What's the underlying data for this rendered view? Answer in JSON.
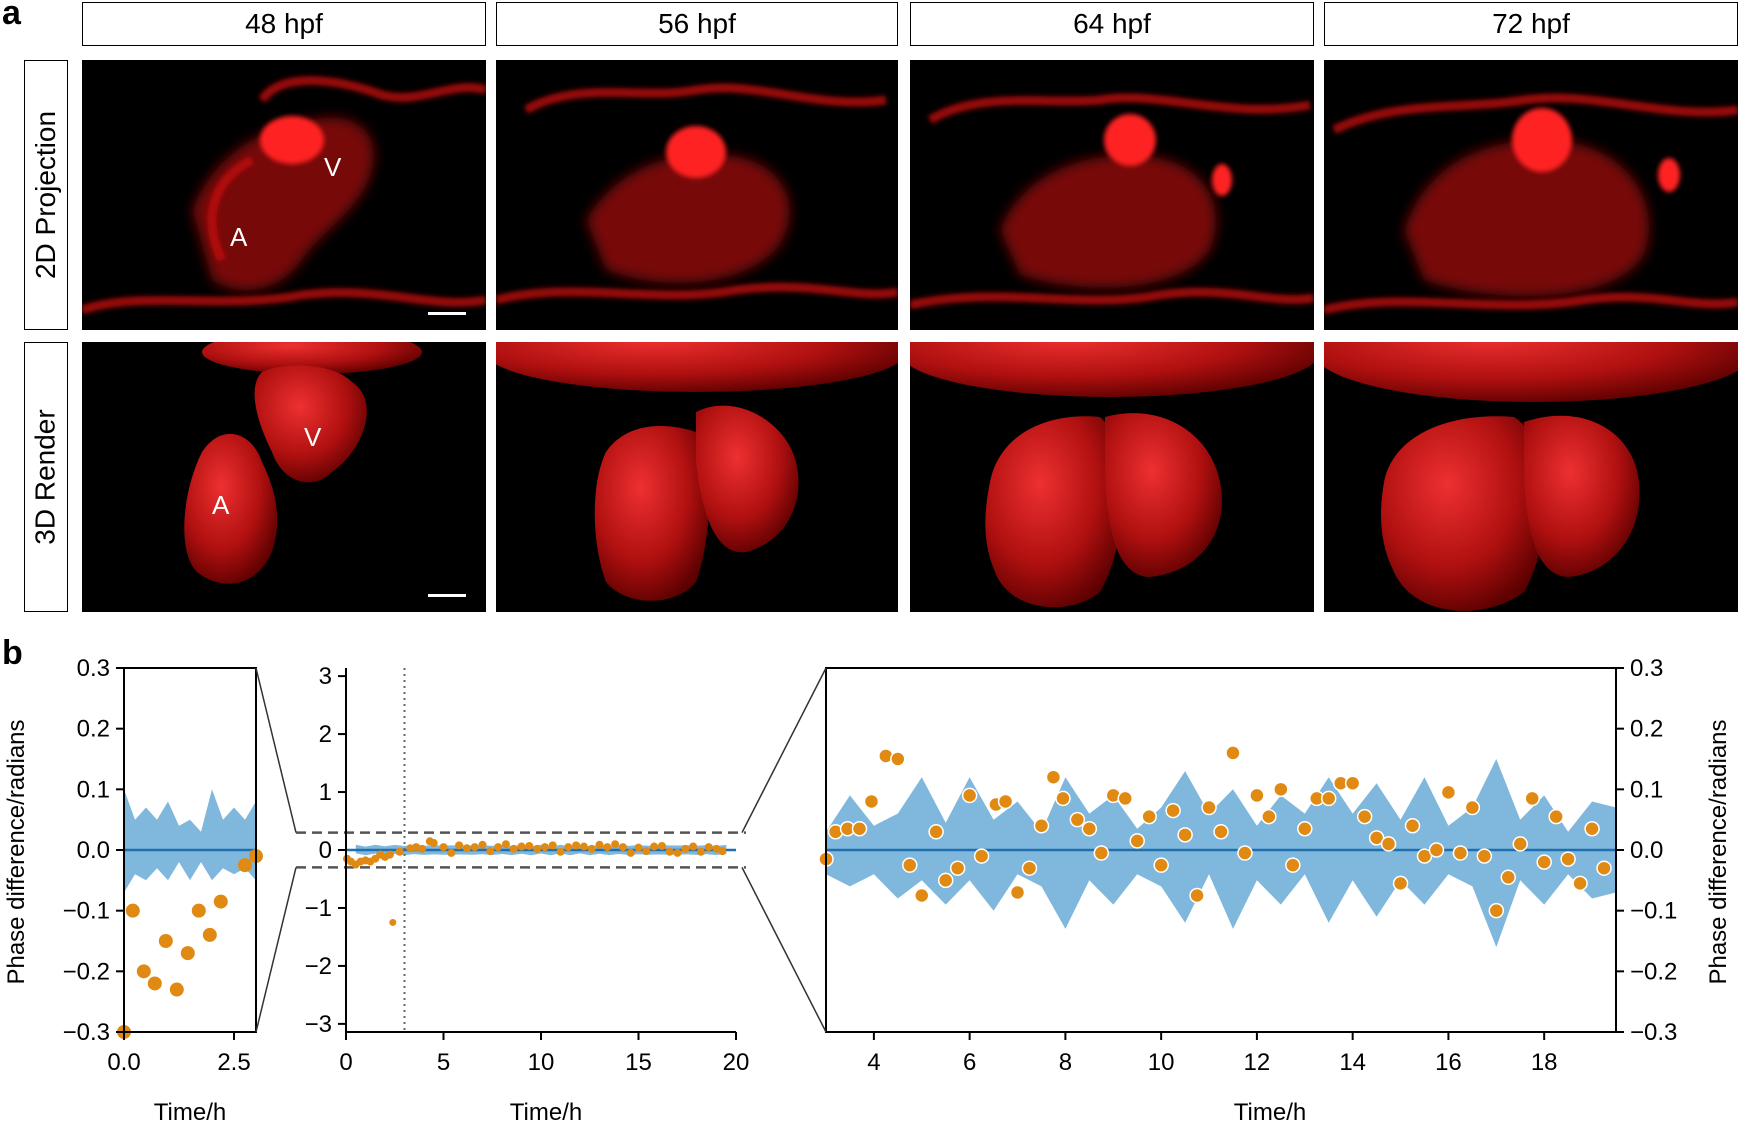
{
  "panel_a": {
    "letter": "a",
    "columns": [
      "48 hpf",
      "56 hpf",
      "64 hpf",
      "72 hpf"
    ],
    "rows": [
      "2D Projection",
      "3D Render"
    ],
    "chamber_labels": {
      "atrium": "A",
      "ventricle": "V"
    }
  },
  "panel_b": {
    "letter": "b"
  },
  "colors": {
    "dots": "#e08a14",
    "band": "#7fb8dc",
    "mean_line": "#1f6fb0",
    "fluor": "#e01010"
  },
  "chart_data": [
    {
      "type": "scatter",
      "subtype": "inset-left",
      "xlabel": "Time/h",
      "ylabel": "Phase difference/radians",
      "xlim": [
        0,
        3.0
      ],
      "ylim": [
        -0.3,
        0.3
      ],
      "xticks": [
        "0.0",
        "2.5"
      ],
      "yticks": [
        "0.3",
        "0.2",
        "0.1",
        "0.0",
        "−0.1",
        "−0.2",
        "−0.3"
      ],
      "points": [
        [
          0.0,
          -0.3
        ],
        [
          0.2,
          -0.1
        ],
        [
          0.45,
          -0.2
        ],
        [
          0.7,
          -0.22
        ],
        [
          0.95,
          -0.15
        ],
        [
          1.2,
          -0.23
        ],
        [
          1.45,
          -0.17
        ],
        [
          1.7,
          -0.1
        ],
        [
          1.95,
          -0.14
        ],
        [
          2.2,
          -0.085
        ],
        [
          2.75,
          -0.025
        ],
        [
          3.0,
          -0.01
        ]
      ],
      "band_upper": [
        [
          0.0,
          0.1
        ],
        [
          0.25,
          0.05
        ],
        [
          0.5,
          0.07
        ],
        [
          0.75,
          0.05
        ],
        [
          1.0,
          0.08
        ],
        [
          1.25,
          0.04
        ],
        [
          1.5,
          0.05
        ],
        [
          1.75,
          0.03
        ],
        [
          2.0,
          0.1
        ],
        [
          2.25,
          0.05
        ],
        [
          2.5,
          0.07
        ],
        [
          2.75,
          0.05
        ],
        [
          3.0,
          0.08
        ]
      ],
      "band_lower": [
        [
          0.0,
          -0.07
        ],
        [
          0.25,
          -0.04
        ],
        [
          0.5,
          -0.05
        ],
        [
          0.75,
          -0.03
        ],
        [
          1.0,
          -0.05
        ],
        [
          1.25,
          -0.02
        ],
        [
          1.5,
          -0.05
        ],
        [
          1.75,
          -0.02
        ],
        [
          2.0,
          -0.05
        ],
        [
          2.25,
          -0.03
        ],
        [
          2.5,
          -0.04
        ],
        [
          2.75,
          -0.03
        ],
        [
          3.0,
          -0.05
        ]
      ],
      "mean": 0.0
    },
    {
      "type": "scatter",
      "subtype": "overview",
      "xlabel": "Time/h",
      "xlim": [
        0,
        20
      ],
      "ylim": [
        -3.14,
        3.14
      ],
      "xticks": [
        "0",
        "5",
        "10",
        "15",
        "20"
      ],
      "yticks": [
        "3",
        "2",
        "1",
        "0",
        "−1",
        "−2",
        "−3"
      ],
      "vline_x": 3.0,
      "zoom_band": [
        -0.3,
        0.3
      ],
      "outlier": [
        2.4,
        -1.25
      ],
      "points": [
        [
          0.05,
          -0.15
        ],
        [
          0.25,
          -0.2
        ],
        [
          0.5,
          -0.25
        ],
        [
          0.75,
          -0.2
        ],
        [
          1.0,
          -0.18
        ],
        [
          1.25,
          -0.2
        ],
        [
          1.5,
          -0.15
        ],
        [
          1.75,
          -0.08
        ],
        [
          2.0,
          -0.12
        ],
        [
          2.25,
          -0.08
        ],
        [
          2.75,
          -0.03
        ],
        [
          3.3,
          0.03
        ],
        [
          3.6,
          0.05
        ],
        [
          3.9,
          0.02
        ],
        [
          4.3,
          0.15
        ],
        [
          4.5,
          0.12
        ],
        [
          5.0,
          0.05
        ],
        [
          5.4,
          -0.05
        ],
        [
          5.8,
          0.08
        ],
        [
          6.2,
          0.03
        ],
        [
          6.6,
          0.05
        ],
        [
          7.0,
          0.09
        ],
        [
          7.4,
          -0.02
        ],
        [
          7.8,
          0.05
        ],
        [
          8.2,
          0.1
        ],
        [
          8.6,
          0.02
        ],
        [
          9.0,
          0.06
        ],
        [
          9.4,
          0.07
        ],
        [
          9.8,
          0.02
        ],
        [
          10.2,
          0.05
        ],
        [
          10.6,
          0.08
        ],
        [
          11.0,
          -0.03
        ],
        [
          11.4,
          0.05
        ],
        [
          11.8,
          0.08
        ],
        [
          12.2,
          0.06
        ],
        [
          12.6,
          0.02
        ],
        [
          13.0,
          0.09
        ],
        [
          13.4,
          0.05
        ],
        [
          13.8,
          0.1
        ],
        [
          14.2,
          0.05
        ],
        [
          14.6,
          -0.05
        ],
        [
          15.0,
          0.04
        ],
        [
          15.4,
          -0.02
        ],
        [
          15.8,
          0.06
        ],
        [
          16.2,
          0.07
        ],
        [
          16.6,
          -0.03
        ],
        [
          17.0,
          -0.05
        ],
        [
          17.4,
          0.02
        ],
        [
          17.8,
          0.06
        ],
        [
          18.2,
          -0.03
        ],
        [
          18.6,
          0.05
        ],
        [
          19.0,
          0.02
        ],
        [
          19.3,
          -0.02
        ]
      ],
      "band_halfwidth": 0.09,
      "mean": 0.0
    },
    {
      "type": "scatter",
      "subtype": "zoom-right",
      "xlabel": "Time/h",
      "ylabel": "Phase difference/radians",
      "xlim": [
        3.0,
        19.5
      ],
      "ylim": [
        -0.3,
        0.3
      ],
      "xticks": [
        "4",
        "6",
        "8",
        "10",
        "12",
        "14",
        "16",
        "18"
      ],
      "yticks": [
        "0.3",
        "0.2",
        "0.1",
        "0.0",
        "−0.1",
        "−0.2",
        "−0.3"
      ],
      "points": [
        [
          3.0,
          -0.015
        ],
        [
          3.2,
          0.03
        ],
        [
          3.45,
          0.035
        ],
        [
          3.7,
          0.035
        ],
        [
          3.95,
          0.08
        ],
        [
          4.25,
          0.155
        ],
        [
          4.5,
          0.15
        ],
        [
          4.75,
          -0.025
        ],
        [
          5.0,
          -0.075
        ],
        [
          5.3,
          0.03
        ],
        [
          5.5,
          -0.05
        ],
        [
          5.75,
          -0.03
        ],
        [
          6.0,
          0.09
        ],
        [
          6.25,
          -0.01
        ],
        [
          6.55,
          0.075
        ],
        [
          6.75,
          0.08
        ],
        [
          7.0,
          -0.07
        ],
        [
          7.25,
          -0.03
        ],
        [
          7.5,
          0.04
        ],
        [
          7.75,
          0.12
        ],
        [
          7.95,
          0.085
        ],
        [
          8.25,
          0.05
        ],
        [
          8.5,
          0.035
        ],
        [
          8.75,
          -0.005
        ],
        [
          9.0,
          0.09
        ],
        [
          9.25,
          0.085
        ],
        [
          9.5,
          0.015
        ],
        [
          9.75,
          0.055
        ],
        [
          10.0,
          -0.025
        ],
        [
          10.25,
          0.065
        ],
        [
          10.5,
          0.025
        ],
        [
          10.75,
          -0.075
        ],
        [
          11.0,
          0.07
        ],
        [
          11.25,
          0.03
        ],
        [
          11.5,
          0.16
        ],
        [
          11.75,
          -0.005
        ],
        [
          12.0,
          0.09
        ],
        [
          12.25,
          0.055
        ],
        [
          12.5,
          0.1
        ],
        [
          12.75,
          -0.025
        ],
        [
          13.0,
          0.035
        ],
        [
          13.25,
          0.085
        ],
        [
          13.5,
          0.085
        ],
        [
          13.75,
          0.11
        ],
        [
          14.0,
          0.11
        ],
        [
          14.25,
          0.055
        ],
        [
          14.5,
          0.02
        ],
        [
          14.75,
          0.01
        ],
        [
          15.0,
          -0.055
        ],
        [
          15.25,
          0.04
        ],
        [
          15.5,
          -0.01
        ],
        [
          15.75,
          0.0
        ],
        [
          16.0,
          0.095
        ],
        [
          16.25,
          -0.005
        ],
        [
          16.5,
          0.07
        ],
        [
          16.75,
          -0.01
        ],
        [
          17.0,
          -0.1
        ],
        [
          17.25,
          -0.045
        ],
        [
          17.5,
          0.01
        ],
        [
          17.75,
          0.085
        ],
        [
          18.0,
          -0.02
        ],
        [
          18.25,
          0.055
        ],
        [
          18.5,
          -0.015
        ],
        [
          18.75,
          -0.055
        ],
        [
          19.0,
          0.035
        ],
        [
          19.25,
          -0.03
        ]
      ],
      "band_upper": [
        [
          3.0,
          0.03
        ],
        [
          3.5,
          0.09
        ],
        [
          4.0,
          0.04
        ],
        [
          4.5,
          0.06
        ],
        [
          5.0,
          0.12
        ],
        [
          5.5,
          0.045
        ],
        [
          6.0,
          0.12
        ],
        [
          6.5,
          0.05
        ],
        [
          7.0,
          0.08
        ],
        [
          7.5,
          0.03
        ],
        [
          8.0,
          0.12
        ],
        [
          8.5,
          0.06
        ],
        [
          9.0,
          0.09
        ],
        [
          9.5,
          0.035
        ],
        [
          10.0,
          0.07
        ],
        [
          10.5,
          0.13
        ],
        [
          11.0,
          0.06
        ],
        [
          11.5,
          0.1
        ],
        [
          12.0,
          0.04
        ],
        [
          12.5,
          0.09
        ],
        [
          13.0,
          0.06
        ],
        [
          13.5,
          0.12
        ],
        [
          14.0,
          0.06
        ],
        [
          14.5,
          0.11
        ],
        [
          15.0,
          0.05
        ],
        [
          15.5,
          0.12
        ],
        [
          16.0,
          0.04
        ],
        [
          16.5,
          0.07
        ],
        [
          17.0,
          0.15
        ],
        [
          17.5,
          0.05
        ],
        [
          18.0,
          0.09
        ],
        [
          18.5,
          0.03
        ],
        [
          19.0,
          0.08
        ],
        [
          19.5,
          0.07
        ]
      ],
      "band_lower": [
        [
          3.0,
          -0.04
        ],
        [
          3.5,
          -0.06
        ],
        [
          4.0,
          -0.04
        ],
        [
          4.5,
          -0.08
        ],
        [
          5.0,
          -0.05
        ],
        [
          5.5,
          -0.09
        ],
        [
          6.0,
          -0.05
        ],
        [
          6.5,
          -0.1
        ],
        [
          7.0,
          -0.04
        ],
        [
          7.5,
          -0.06
        ],
        [
          8.0,
          -0.13
        ],
        [
          8.5,
          -0.05
        ],
        [
          9.0,
          -0.09
        ],
        [
          9.5,
          -0.04
        ],
        [
          10.0,
          -0.06
        ],
        [
          10.5,
          -0.12
        ],
        [
          11.0,
          -0.04
        ],
        [
          11.5,
          -0.13
        ],
        [
          12.0,
          -0.05
        ],
        [
          12.5,
          -0.09
        ],
        [
          13.0,
          -0.04
        ],
        [
          13.5,
          -0.12
        ],
        [
          14.0,
          -0.05
        ],
        [
          14.5,
          -0.11
        ],
        [
          15.0,
          -0.05
        ],
        [
          15.5,
          -0.09
        ],
        [
          16.0,
          -0.04
        ],
        [
          16.5,
          -0.06
        ],
        [
          17.0,
          -0.16
        ],
        [
          17.5,
          -0.05
        ],
        [
          18.0,
          -0.09
        ],
        [
          18.5,
          -0.04
        ],
        [
          19.0,
          -0.08
        ],
        [
          19.5,
          -0.07
        ]
      ],
      "mean": 0.0
    }
  ]
}
